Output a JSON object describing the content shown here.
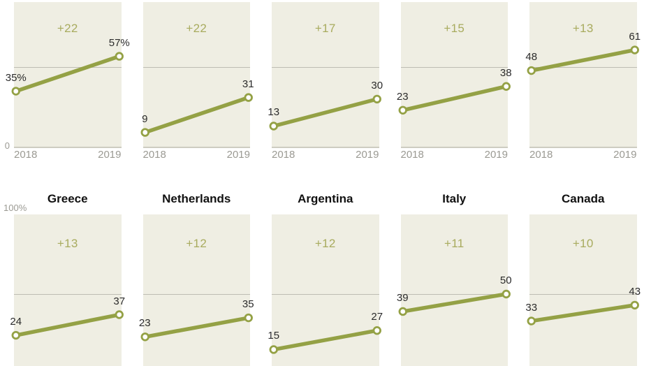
{
  "chart_data": {
    "type": "line",
    "x_labels": [
      "2018",
      "2019"
    ],
    "ylim": [
      0,
      100
    ],
    "gridline_value": 50,
    "y_axis": {
      "zero": "0",
      "hundred": "100%"
    },
    "rows": [
      {
        "charts": [
          {
            "title": "",
            "diff": "+22",
            "values": [
              35,
              57
            ],
            "point_labels": [
              "35%",
              "57%"
            ]
          },
          {
            "title": "",
            "diff": "+22",
            "values": [
              9,
              31
            ],
            "point_labels": [
              "9",
              "31"
            ]
          },
          {
            "title": "",
            "diff": "+17",
            "values": [
              13,
              30
            ],
            "point_labels": [
              "13",
              "30"
            ]
          },
          {
            "title": "",
            "diff": "+15",
            "values": [
              23,
              38
            ],
            "point_labels": [
              "23",
              "38"
            ]
          },
          {
            "title": "",
            "diff": "+13",
            "values": [
              48,
              61
            ],
            "point_labels": [
              "48",
              "61"
            ]
          }
        ]
      },
      {
        "charts": [
          {
            "title": "Greece",
            "diff": "+13",
            "values": [
              24,
              37
            ],
            "point_labels": [
              "24",
              "37"
            ]
          },
          {
            "title": "Netherlands",
            "diff": "+12",
            "values": [
              23,
              35
            ],
            "point_labels": [
              "23",
              "35"
            ]
          },
          {
            "title": "Argentina",
            "diff": "+12",
            "values": [
              15,
              27
            ],
            "point_labels": [
              "15",
              "27"
            ]
          },
          {
            "title": "Italy",
            "diff": "+11",
            "values": [
              39,
              50
            ],
            "point_labels": [
              "39",
              "50"
            ]
          },
          {
            "title": "Canada",
            "diff": "+10",
            "values": [
              33,
              43
            ],
            "point_labels": [
              "33",
              "43"
            ]
          }
        ]
      }
    ]
  },
  "colors": {
    "background": "#ffffff",
    "plot_bg": "#efeee3",
    "line": "#94a145",
    "point_fill": "#ffffff",
    "diff_label": "#a8ab5e",
    "gridline": "#bdbcb2",
    "baseline": "#cdccc1",
    "value_text": "#2b2b2b",
    "axis_text": "#9b9a93",
    "title_text": "#111111"
  }
}
